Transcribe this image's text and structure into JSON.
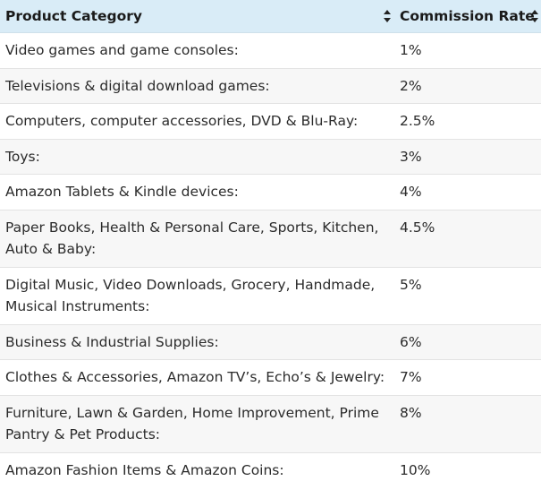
{
  "table": {
    "headers": {
      "category": "Product Category",
      "rate": "Commission Rate"
    },
    "rows": [
      {
        "category": "Video games and game consoles:",
        "rate": "1%"
      },
      {
        "category": "Televisions & digital download games:",
        "rate": "2%"
      },
      {
        "category": "Computers, computer accessories, DVD & Blu-Ray:",
        "rate": "2.5%"
      },
      {
        "category": "Toys:",
        "rate": "3%"
      },
      {
        "category": "Amazon Tablets & Kindle devices:",
        "rate": "4%"
      },
      {
        "category": "Paper Books, Health & Personal Care, Sports, Kitchen, Auto & Baby:",
        "rate": "4.5%"
      },
      {
        "category": "Digital Music, Video Downloads, Grocery, Handmade, Musical Instruments:",
        "rate": "5%"
      },
      {
        "category": "Business & Industrial Supplies:",
        "rate": "6%"
      },
      {
        "category": "Clothes & Accessories, Amazon TV’s, Echo’s & Jewelry:",
        "rate": "7%"
      },
      {
        "category": "Furniture, Lawn & Garden, Home Improvement, Prime Pantry & Pet Products:",
        "rate": "8%"
      },
      {
        "category": "Amazon Fashion Items & Amazon Coins:",
        "rate": "10%"
      }
    ]
  },
  "icons": {
    "sort": "sort-arrows-icon"
  }
}
